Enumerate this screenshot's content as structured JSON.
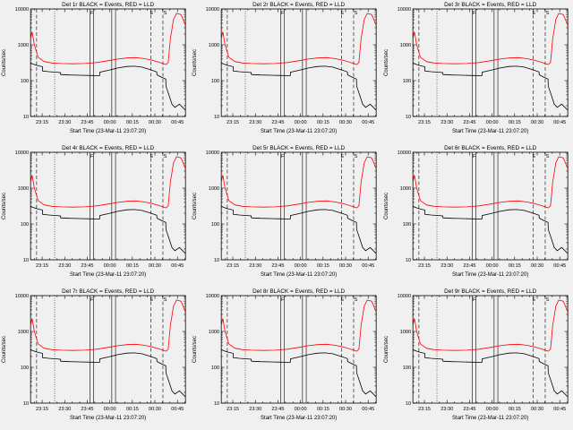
{
  "figure": {
    "background": "#f0f0f0",
    "description": "3x3 grid of detector count-rate time series plots"
  },
  "chart_data": {
    "type": "line",
    "yscale": "log",
    "xlabel": "Start Time (23-Mar-11 23:07:20)",
    "ylabel": "Counts/sec",
    "legend_note": "BLACK = Events, RED = LLD",
    "xlim": [
      0,
      103
    ],
    "ylim": [
      10,
      10000
    ],
    "x_unit": "minutes since 23:07:20",
    "x_ticks": [
      {
        "pos": 7.67,
        "label": "23:15"
      },
      {
        "pos": 22.67,
        "label": "23:30"
      },
      {
        "pos": 37.67,
        "label": "23:45"
      },
      {
        "pos": 52.67,
        "label": "00:00"
      },
      {
        "pos": 67.67,
        "label": "00:15"
      },
      {
        "pos": 82.67,
        "label": "00:30"
      },
      {
        "pos": 97.67,
        "label": "00:45"
      }
    ],
    "y_ticks": [
      {
        "v": 10,
        "label": "10"
      },
      {
        "v": 100,
        "label": "100"
      },
      {
        "v": 1000,
        "label": "1000"
      },
      {
        "v": 10000,
        "label": "10000"
      }
    ],
    "subplots": [
      {
        "det": "1r",
        "title": "Det 1r BLACK = Events, RED = LLD"
      },
      {
        "det": "2r",
        "title": "Det 2r BLACK = Events, RED = LLD"
      },
      {
        "det": "3r",
        "title": "Det 3r BLACK = Events, RED = LLD"
      },
      {
        "det": "4r",
        "title": "Det 4r BLACK = Events, RED = LLD"
      },
      {
        "det": "5r",
        "title": "Det 5r BLACK = Events, RED = LLD"
      },
      {
        "det": "6r",
        "title": "Det 6r BLACK = Events, RED = LLD"
      },
      {
        "det": "7r",
        "title": "Det 7r BLACK = Events, RED = LLD"
      },
      {
        "det": "8r",
        "title": "Det 8r BLACK = Events, RED = LLD"
      },
      {
        "det": "9r",
        "title": "Det 9r BLACK = Events, RED = LLD"
      }
    ],
    "series": [
      {
        "name": "LLD",
        "color": "#ff0000",
        "x": [
          0,
          1,
          2.5,
          5,
          9,
          14,
          20,
          28,
          36,
          44,
          52,
          58,
          64,
          70,
          76,
          81,
          85,
          88,
          90,
          91.5,
          93,
          95,
          97,
          100,
          103
        ],
        "y": [
          1500,
          2300,
          1000,
          450,
          340,
          310,
          300,
          295,
          300,
          320,
          360,
          400,
          430,
          440,
          410,
          370,
          330,
          300,
          280,
          320,
          1500,
          5000,
          7500,
          7000,
          3500
        ]
      },
      {
        "name": "Events",
        "color": "#000000",
        "x": [
          0,
          2,
          5,
          7.9,
          8,
          12,
          17,
          19.9,
          20,
          26,
          33,
          40,
          45.9,
          46,
          52,
          58,
          64,
          69,
          74,
          79,
          83.9,
          84,
          87,
          89.9,
          90,
          92,
          94,
          96,
          99,
          103
        ],
        "y": [
          310,
          285,
          260,
          245,
          185,
          178,
          172,
          168,
          148,
          144,
          141,
          139,
          137,
          172,
          195,
          225,
          248,
          252,
          238,
          205,
          175,
          145,
          125,
          110,
          70,
          40,
          22,
          18,
          22,
          15
        ]
      }
    ],
    "vlines": [
      {
        "x": 4,
        "style": "dashed"
      },
      {
        "x": 16,
        "style": "dotted"
      },
      {
        "x": 39.5,
        "style": "solid"
      },
      {
        "x": 42,
        "style": "solid"
      },
      {
        "x": 54,
        "style": "solid"
      },
      {
        "x": 56.5,
        "style": "solid"
      },
      {
        "x": 80,
        "style": "dashed"
      },
      {
        "x": 88,
        "style": "dashed"
      }
    ],
    "annotations": [
      {
        "x": 40.8,
        "label": "F"
      },
      {
        "x": 80.5,
        "label": "E"
      },
      {
        "x": 89.5,
        "label": "S"
      }
    ]
  }
}
